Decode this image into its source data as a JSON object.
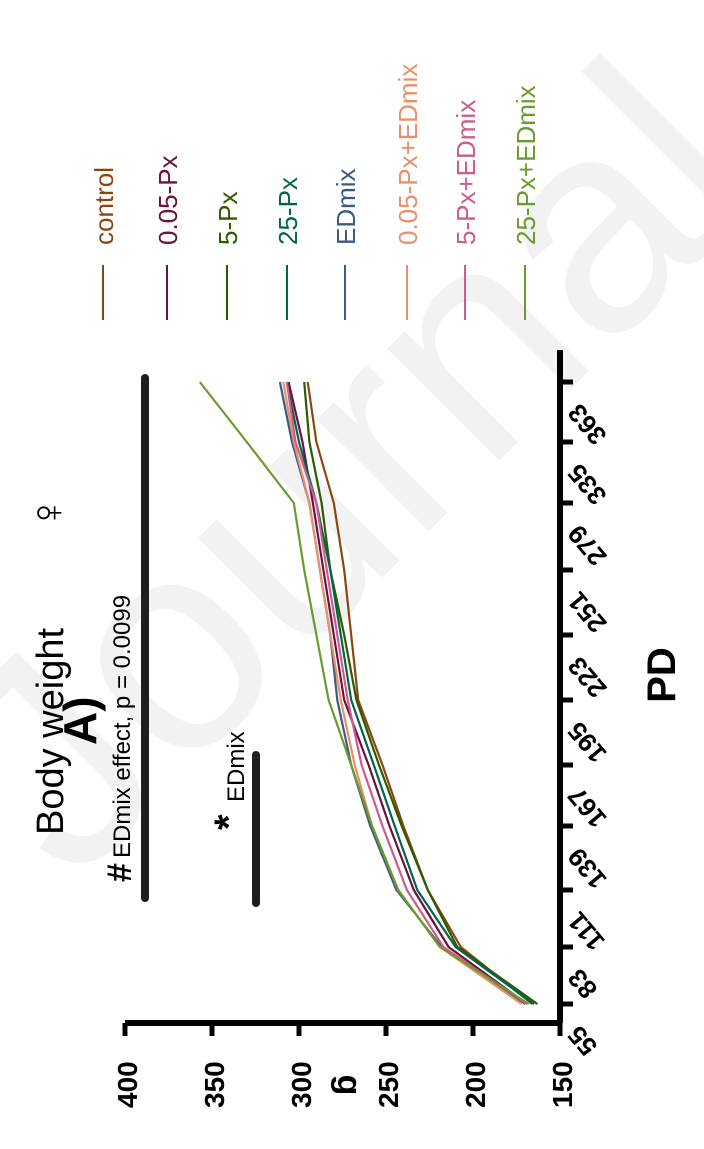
{
  "panel_label": "A)",
  "title": "Body weight",
  "title_symbol": "♀",
  "watermark": "Journal",
  "annotations": {
    "edmix_effect_symbol": "#",
    "edmix_effect_text": "EDmix effect, p = 0.0099",
    "edmix_star": "*",
    "edmix_star_text": "EDmix"
  },
  "chart_data": {
    "type": "line",
    "xlabel": "PD",
    "ylabel": "g",
    "ylim": [
      150,
      400
    ],
    "yticks": [
      150,
      200,
      250,
      300,
      350,
      400
    ],
    "x": [
      55,
      83,
      111,
      139,
      167,
      195,
      223,
      251,
      279,
      335,
      363
    ],
    "xticks": [
      55,
      83,
      111,
      139,
      167,
      195,
      223,
      251,
      279,
      335,
      363
    ],
    "orientation": "rotated-90-clockwise",
    "grid": false,
    "legend_position": "top",
    "series": [
      {
        "name": "control",
        "color": "#8B4513",
        "values": [
          166,
          207,
          226,
          240,
          252,
          266,
          270,
          274,
          280,
          290,
          295
        ]
      },
      {
        "name": "0.05-Px",
        "color": "#6B1040",
        "values": [
          169,
          214,
          234,
          248,
          260,
          274,
          280,
          286,
          292,
          298,
          306
        ]
      },
      {
        "name": "5-Px",
        "color": "#2E5A00",
        "values": [
          163,
          209,
          226,
          241,
          254,
          267,
          274,
          282,
          287,
          294,
          297
        ]
      },
      {
        "name": "25-Px",
        "color": "#006644",
        "values": [
          165,
          210,
          232,
          245,
          257,
          270,
          276,
          282,
          290,
          300,
          307
        ]
      },
      {
        "name": "EDmix",
        "color": "#3B5A80",
        "values": [
          170,
          218,
          244,
          259,
          270,
          278,
          282,
          288,
          294,
          304,
          311
        ]
      },
      {
        "name": "0.05-Px+EDmix",
        "color": "#E8906A",
        "values": [
          172,
          219,
          243,
          258,
          268,
          276,
          282,
          288,
          294,
          303,
          309
        ]
      },
      {
        "name": "5-Px+EDmix",
        "color": "#CC5C8C",
        "values": [
          169,
          217,
          238,
          252,
          264,
          272,
          278,
          284,
          290,
          302,
          307
        ]
      },
      {
        "name": "25-Px+EDmix",
        "color": "#6B9A2E",
        "values": [
          168,
          219,
          243,
          258,
          270,
          283,
          290,
          297,
          303,
          330,
          357
        ]
      }
    ]
  }
}
